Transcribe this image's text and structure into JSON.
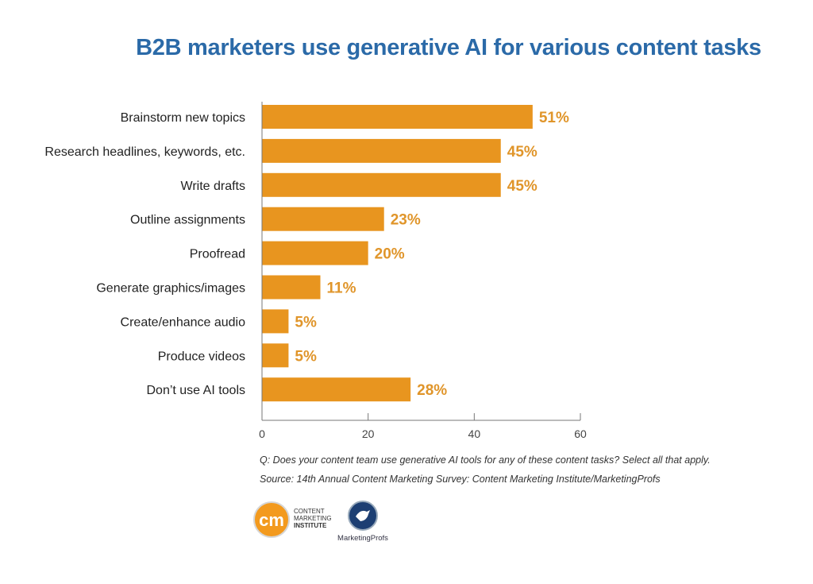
{
  "chart_data": {
    "type": "bar",
    "orientation": "horizontal",
    "title": "B2B marketers use generative AI for various content tasks",
    "categories": [
      "Brainstorm new topics",
      "Research headlines, keywords, etc.",
      "Write drafts",
      "Outline assignments",
      "Proofread",
      "Generate graphics/images",
      "Create/enhance audio",
      "Produce videos",
      "Don’t use AI tools"
    ],
    "values": [
      51,
      45,
      45,
      23,
      20,
      11,
      5,
      5,
      28
    ],
    "data_labels": [
      "51%",
      "45%",
      "45%",
      "23%",
      "20%",
      "11%",
      "5%",
      "5%",
      "28%"
    ],
    "xlim": [
      0,
      60
    ],
    "xticks": [
      "0",
      "20",
      "40",
      "60"
    ],
    "xlabel": "",
    "ylabel": "",
    "grid": false,
    "bar_color": "#e8951f",
    "label_color": "#e0952a",
    "title_color": "#2b6aa8"
  },
  "notes": {
    "question": "Q: Does your content team use generative AI tools for any of these content tasks? Select all that apply.",
    "source": "Source: 14th Annual Content Marketing Survey: Content Marketing Institute/MarketingProfs"
  },
  "logos": {
    "cmi_mark": "cm",
    "cmi_text": [
      "CONTENT",
      "MARKETING",
      "INSTITUTE"
    ],
    "mp_text": "MarketingProfs"
  }
}
